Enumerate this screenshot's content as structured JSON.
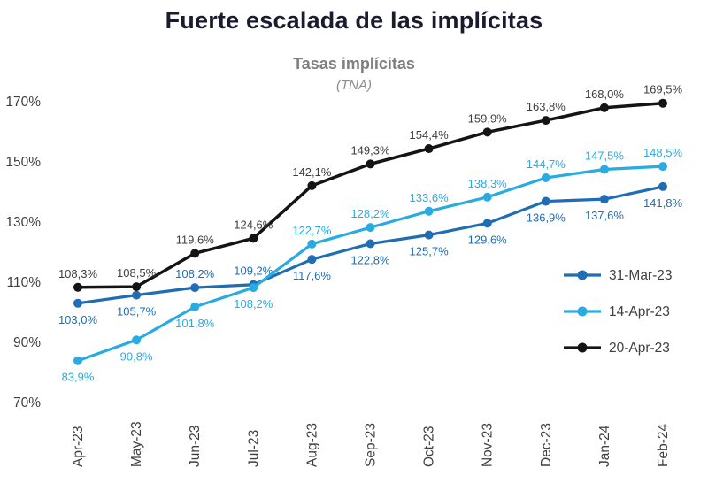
{
  "chart_data": {
    "type": "line",
    "title": "Fuerte escalada de las implícitas",
    "subtitle": "Tasas implícitas",
    "units_note": "(TNA)",
    "categories": [
      "Apr-23",
      "May-23",
      "Jun-23",
      "Jul-23",
      "Aug-23",
      "Sep-23",
      "Oct-23",
      "Nov-23",
      "Dec-23",
      "Jan-24",
      "Feb-24"
    ],
    "xlabel": "",
    "ylabel": "",
    "ylim": [
      70,
      170
    ],
    "yticks": [
      70,
      90,
      110,
      130,
      150,
      170
    ],
    "ytick_labels": [
      "70%",
      "90%",
      "110%",
      "130%",
      "150%",
      "170%"
    ],
    "grid": false,
    "legend_position": "middle-right",
    "series": [
      {
        "name": "31-Mar-23",
        "color": "#1f6db4",
        "label_color": "#1f6db4",
        "values": [
          103.0,
          105.7,
          108.2,
          109.2,
          117.6,
          122.8,
          125.7,
          129.6,
          136.9,
          137.6,
          141.8
        ],
        "labels": [
          "103,0%",
          "105,7%",
          "108,2%",
          "109,2%",
          "117,6%",
          "122,8%",
          "125,7%",
          "129,6%",
          "136,9%",
          "137,6%",
          "141,8%"
        ],
        "label_positions": [
          "below",
          "below",
          "above",
          "above",
          "below",
          "below",
          "below",
          "below",
          "below",
          "below",
          "below"
        ]
      },
      {
        "name": "14-Apr-23",
        "color": "#29abe2",
        "label_color": "#29abe2",
        "values": [
          83.9,
          90.8,
          101.8,
          108.2,
          122.7,
          128.2,
          133.6,
          138.3,
          144.7,
          147.5,
          148.5
        ],
        "labels": [
          "83,9%",
          "90,8%",
          "101,8%",
          "108,2%",
          "122,7%",
          "128,2%",
          "133,6%",
          "138,3%",
          "144,7%",
          "147,5%",
          "148,5%"
        ],
        "label_positions": [
          "below",
          "below",
          "below",
          "below",
          "above",
          "above",
          "above",
          "above",
          "above",
          "above",
          "above"
        ]
      },
      {
        "name": "20-Apr-23",
        "color": "#141414",
        "label_color": "#3d3d3d",
        "values": [
          108.3,
          108.5,
          119.6,
          124.6,
          142.1,
          149.3,
          154.4,
          159.9,
          163.8,
          168.0,
          169.5
        ],
        "labels": [
          "108,3%",
          "108,5%",
          "119,6%",
          "124,6%",
          "142,1%",
          "149,3%",
          "154,4%",
          "159,9%",
          "163,8%",
          "168,0%",
          "169,5%"
        ],
        "label_positions": [
          "above",
          "above",
          "above",
          "above",
          "above",
          "above",
          "above",
          "above",
          "above",
          "above",
          "above"
        ]
      }
    ]
  }
}
